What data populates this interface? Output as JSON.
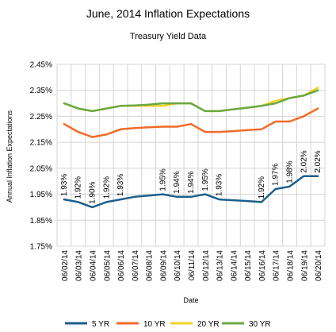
{
  "chart_data": {
    "type": "line",
    "title": "June, 2014 Inflation Expectations",
    "subtitle": "Treasury Yield Data",
    "xlabel": "Date",
    "ylabel": "Annual Inflation Expectations",
    "ylim": [
      1.75,
      2.45
    ],
    "yticks": [
      "1.75%",
      "1.85%",
      "1.95%",
      "2.05%",
      "2.15%",
      "2.25%",
      "2.35%",
      "2.45%"
    ],
    "grid": true,
    "legend_position": "bottom",
    "categories": [
      "06/02/14",
      "06/03/14",
      "06/04/14",
      "06/05/14",
      "06/06/14",
      "06/07/14",
      "06/08/14",
      "06/09/14",
      "06/10/14",
      "06/11/14",
      "06/12/14",
      "06/13/14",
      "06/14/14",
      "06/15/14",
      "06/16/14",
      "06/17/14",
      "06/18/14",
      "06/19/14",
      "06/20/14"
    ],
    "series": [
      {
        "name": "5 YR",
        "color": "#1c5f8c",
        "values": [
          1.93,
          1.92,
          1.9,
          1.92,
          1.93,
          1.94,
          1.945,
          1.95,
          1.94,
          1.94,
          1.95,
          1.93,
          1.927,
          1.924,
          1.92,
          1.97,
          1.98,
          2.02,
          2.02
        ]
      },
      {
        "name": "10 YR",
        "color": "#f26b2a",
        "values": [
          2.22,
          2.19,
          2.17,
          2.18,
          2.2,
          2.205,
          2.208,
          2.21,
          2.21,
          2.22,
          2.19,
          2.19,
          2.193,
          2.197,
          2.2,
          2.23,
          2.23,
          2.25,
          2.28
        ]
      },
      {
        "name": "20 YR",
        "color": "#f3d327",
        "values": [
          2.3,
          2.28,
          2.27,
          2.28,
          2.29,
          2.29,
          2.29,
          2.29,
          2.3,
          2.3,
          2.27,
          2.27,
          2.277,
          2.283,
          2.29,
          2.31,
          2.32,
          2.33,
          2.36
        ]
      },
      {
        "name": "30 YR",
        "color": "#6aa844",
        "values": [
          2.3,
          2.28,
          2.27,
          2.28,
          2.29,
          2.292,
          2.295,
          2.3,
          2.3,
          2.3,
          2.27,
          2.27,
          2.277,
          2.283,
          2.29,
          2.3,
          2.32,
          2.33,
          2.35
        ]
      }
    ],
    "data_labels": [
      {
        "series": "5 YR",
        "index": 0,
        "text": "1.93%"
      },
      {
        "series": "5 YR",
        "index": 1,
        "text": "1.92%"
      },
      {
        "series": "5 YR",
        "index": 2,
        "text": "1.90%"
      },
      {
        "series": "5 YR",
        "index": 3,
        "text": "1.92%"
      },
      {
        "series": "5 YR",
        "index": 4,
        "text": "1.93%"
      },
      {
        "series": "5 YR",
        "index": 7,
        "text": "1.95%"
      },
      {
        "series": "5 YR",
        "index": 8,
        "text": "1.94%"
      },
      {
        "series": "5 YR",
        "index": 9,
        "text": "1.94%"
      },
      {
        "series": "5 YR",
        "index": 10,
        "text": "1.95%"
      },
      {
        "series": "5 YR",
        "index": 11,
        "text": "1.93%"
      },
      {
        "series": "5 YR",
        "index": 14,
        "text": "1.92%"
      },
      {
        "series": "5 YR",
        "index": 15,
        "text": "1.97%"
      },
      {
        "series": "5 YR",
        "index": 16,
        "text": "1.98%"
      },
      {
        "series": "5 YR",
        "index": 17,
        "text": "2.02%"
      },
      {
        "series": "5 YR",
        "index": 18,
        "text": "2.02%"
      }
    ]
  }
}
